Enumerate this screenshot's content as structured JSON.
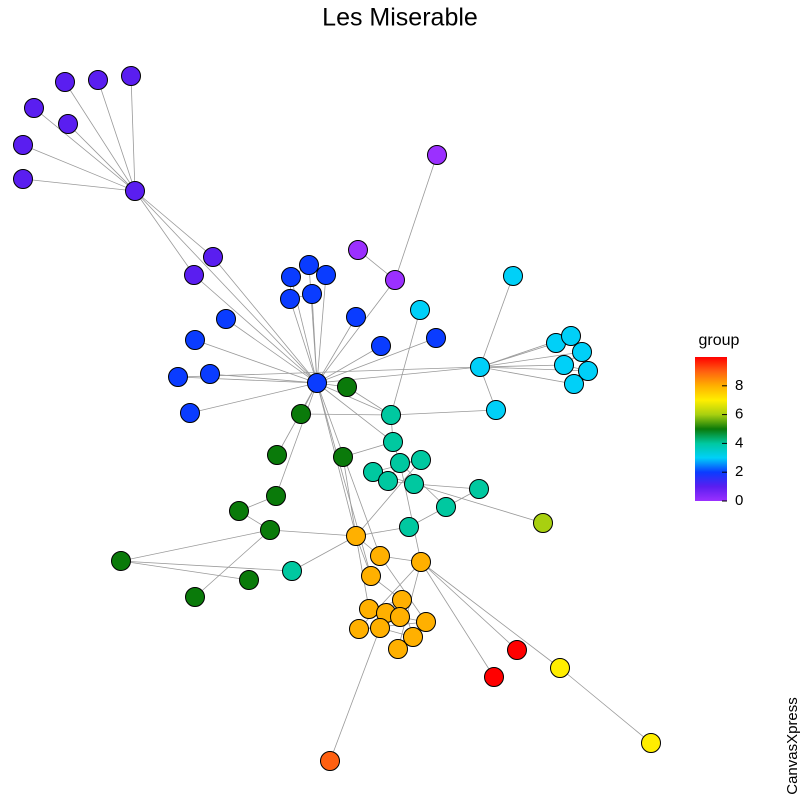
{
  "chart_data": {
    "type": "network",
    "title": "Les Miserable",
    "legend_title": "group",
    "watermark": "CanvasXpress",
    "palette": [
      "#9b30ff",
      "#5a1ef0",
      "#0a3cff",
      "#00d0f8",
      "#00c8a0",
      "#0a7a0a",
      "#a8d010",
      "#ffee00",
      "#ffb000",
      "#ff6010",
      "#ff0000"
    ],
    "zlim": [
      0,
      10
    ],
    "zticks": [
      0,
      2,
      4,
      6,
      8
    ],
    "nodes": [
      1,
      1,
      1,
      1,
      1,
      1,
      1,
      1,
      1,
      1,
      0,
      0,
      0,
      2,
      2,
      2,
      2,
      2,
      2,
      2,
      2,
      2,
      2,
      2,
      2,
      2,
      2,
      3,
      3,
      3,
      3,
      3,
      3,
      3,
      3,
      3,
      3,
      5,
      5,
      5,
      5,
      5,
      5,
      5,
      5,
      5,
      5,
      4,
      4,
      4,
      4,
      4,
      4,
      4,
      4,
      4,
      4,
      4,
      6,
      8,
      8,
      8,
      8,
      8,
      8,
      8,
      8,
      8,
      8,
      8,
      8,
      8,
      10,
      10,
      7,
      7,
      9
    ],
    "links": [
      [
        7,
        0
      ],
      [
        7,
        1
      ],
      [
        7,
        2
      ],
      [
        7,
        3
      ],
      [
        7,
        4
      ],
      [
        7,
        5
      ],
      [
        7,
        6
      ],
      [
        7,
        8
      ],
      [
        7,
        9
      ],
      [
        7,
        26
      ],
      [
        8,
        26
      ],
      [
        9,
        26
      ],
      [
        10,
        12
      ],
      [
        11,
        12
      ],
      [
        12,
        26
      ],
      [
        13,
        26
      ],
      [
        14,
        26
      ],
      [
        15,
        26
      ],
      [
        16,
        26
      ],
      [
        17,
        26
      ],
      [
        18,
        26
      ],
      [
        22,
        26
      ],
      [
        23,
        26
      ],
      [
        24,
        26
      ],
      [
        25,
        26
      ],
      [
        13,
        14
      ],
      [
        14,
        15
      ],
      [
        13,
        16
      ],
      [
        16,
        17
      ],
      [
        19,
        26
      ],
      [
        20,
        26
      ],
      [
        21,
        26
      ],
      [
        27,
        29
      ],
      [
        29,
        26
      ],
      [
        29,
        30
      ],
      [
        29,
        31
      ],
      [
        29,
        32
      ],
      [
        29,
        33
      ],
      [
        29,
        34
      ],
      [
        29,
        35
      ],
      [
        29,
        36
      ],
      [
        32,
        33
      ],
      [
        33,
        34
      ],
      [
        34,
        35
      ],
      [
        35,
        36
      ],
      [
        32,
        35
      ],
      [
        30,
        47
      ],
      [
        23,
        29
      ],
      [
        28,
        47
      ],
      [
        37,
        26
      ],
      [
        38,
        26
      ],
      [
        37,
        47
      ],
      [
        40,
        48
      ],
      [
        40,
        59
      ],
      [
        41,
        42
      ],
      [
        42,
        43
      ],
      [
        43,
        44
      ],
      [
        44,
        45
      ],
      [
        43,
        59
      ],
      [
        44,
        57
      ],
      [
        46,
        43
      ],
      [
        41,
        26
      ],
      [
        39,
        26
      ],
      [
        38,
        47
      ],
      [
        47,
        48
      ],
      [
        48,
        49
      ],
      [
        49,
        50
      ],
      [
        50,
        51
      ],
      [
        49,
        52
      ],
      [
        52,
        53
      ],
      [
        51,
        53
      ],
      [
        53,
        54
      ],
      [
        54,
        55
      ],
      [
        55,
        56
      ],
      [
        47,
        26
      ],
      [
        48,
        26
      ],
      [
        53,
        58
      ],
      [
        49,
        55
      ],
      [
        56,
        59
      ],
      [
        57,
        59
      ],
      [
        59,
        60
      ],
      [
        60,
        61
      ],
      [
        59,
        62
      ],
      [
        62,
        63
      ],
      [
        63,
        64
      ],
      [
        64,
        65
      ],
      [
        65,
        66
      ],
      [
        66,
        67
      ],
      [
        67,
        68
      ],
      [
        68,
        69
      ],
      [
        69,
        70
      ],
      [
        70,
        71
      ],
      [
        59,
        64
      ],
      [
        61,
        68
      ],
      [
        61,
        71
      ],
      [
        61,
        72
      ],
      [
        61,
        73
      ],
      [
        61,
        74
      ],
      [
        74,
        75
      ],
      [
        69,
        76
      ],
      [
        59,
        26
      ],
      [
        60,
        26
      ],
      [
        62,
        26
      ],
      [
        61,
        49
      ],
      [
        59,
        50
      ],
      [
        60,
        67
      ],
      [
        63,
        70
      ]
    ]
  }
}
